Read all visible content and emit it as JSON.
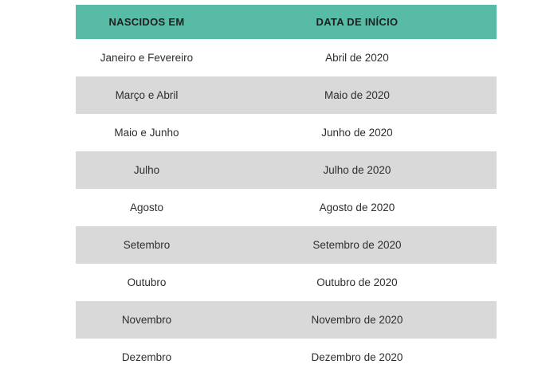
{
  "table": {
    "columns": [
      {
        "label": "NASCIDOS EM"
      },
      {
        "label": "DATA DE INÍCIO"
      }
    ],
    "rows": [
      {
        "born_in": "Janeiro e Fevereiro",
        "start_date": "Abril de 2020"
      },
      {
        "born_in": "Março e Abril",
        "start_date": "Maio de 2020"
      },
      {
        "born_in": "Maio e Junho",
        "start_date": "Junho de 2020"
      },
      {
        "born_in": "Julho",
        "start_date": "Julho de 2020"
      },
      {
        "born_in": "Agosto",
        "start_date": "Agosto de 2020"
      },
      {
        "born_in": "Setembro",
        "start_date": "Setembro de 2020"
      },
      {
        "born_in": "Outubro",
        "start_date": "Outubro de 2020"
      },
      {
        "born_in": "Novembro",
        "start_date": "Novembro de 2020"
      },
      {
        "born_in": "Dezembro",
        "start_date": "Dezembro de 2020"
      }
    ]
  },
  "colors": {
    "header_bg": "#57bba6",
    "row_bg": "#ffffff",
    "row_alt_bg": "#d9d9d9",
    "header_text": "#1f1f1f",
    "cell_text": "#2e2e2e",
    "page_bg": "#ffffff"
  }
}
